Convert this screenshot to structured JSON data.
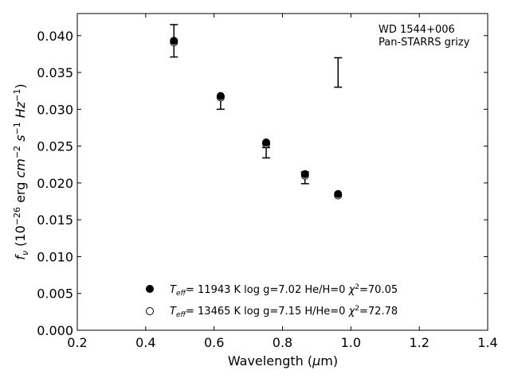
{
  "chart_data": {
    "type": "scatter",
    "annotation": [
      "WD 1544+006",
      "Pan-STARRS grizy"
    ],
    "xlabel": "Wavelength (μm)",
    "xlim": [
      0.2,
      1.4
    ],
    "ylim": [
      0.0,
      0.043
    ],
    "xticks": [
      "0.2",
      "0.4",
      "0.6",
      "0.8",
      "1.0",
      "1.2",
      "1.4"
    ],
    "xtick_values": [
      0.2,
      0.4,
      0.6,
      0.8,
      1.0,
      1.2,
      1.4
    ],
    "yticks": [
      "0.000",
      "0.005",
      "0.010",
      "0.015",
      "0.020",
      "0.025",
      "0.030",
      "0.035",
      "0.040"
    ],
    "ytick_values": [
      0.0,
      0.005,
      0.01,
      0.015,
      0.02,
      0.025,
      0.03,
      0.035,
      0.04
    ],
    "grid": false,
    "observed": {
      "x": [
        0.4826,
        0.6191,
        0.7523,
        0.8658,
        0.9625
      ],
      "y": [
        0.0393,
        0.0309,
        0.0241,
        0.0207,
        0.035
      ],
      "yerr": [
        0.0022,
        0.0009,
        0.0007,
        0.0008,
        0.002
      ],
      "style": "errorbar"
    },
    "series": [
      {
        "name": "T_eff= 11943 K  log g=7.02  He/H=0  χ²=70.05",
        "marker": "filled-circle",
        "x": [
          0.4826,
          0.6191,
          0.7523,
          0.8658,
          0.9625
        ],
        "y": [
          0.0393,
          0.0318,
          0.0255,
          0.0212,
          0.0185
        ]
      },
      {
        "name": "T_eff= 13465 K  log g=7.15  H/He=0  χ²=72.78",
        "marker": "open-circle",
        "x": [
          0.4826,
          0.6191,
          0.7523,
          0.8658,
          0.9625
        ],
        "y": [
          0.0391,
          0.0316,
          0.0253,
          0.021,
          0.0183
        ]
      }
    ],
    "legend_position": "bottom-center"
  }
}
